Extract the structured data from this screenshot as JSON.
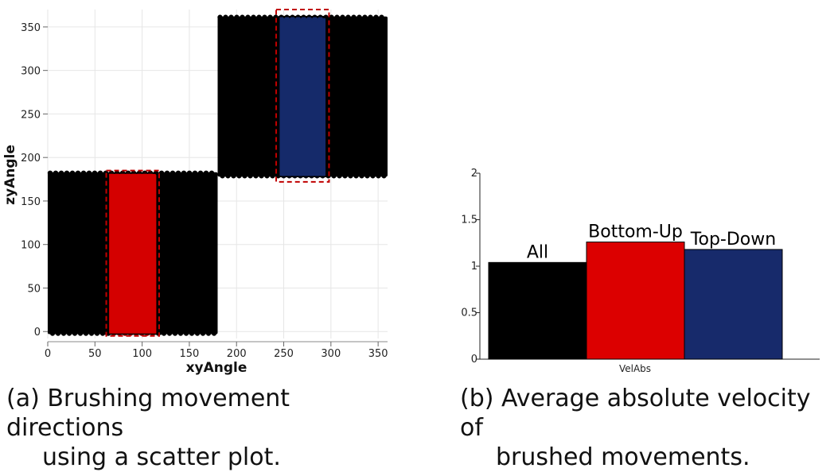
{
  "chart_data": [
    {
      "type": "scatter",
      "xlabel": "xyAngle",
      "ylabel": "zyAngle",
      "xlim": [
        0,
        360
      ],
      "ylim": [
        -8,
        370
      ],
      "xticks": [
        0,
        50,
        100,
        150,
        200,
        250,
        300,
        350
      ],
      "yticks": [
        0,
        50,
        100,
        150,
        200,
        250,
        300,
        350
      ],
      "grid": true,
      "regions": [
        {
          "name": "",
          "color": "#000000",
          "x": [
            0,
            180
          ],
          "y": [
            -3,
            183
          ]
        },
        {
          "name": "",
          "color": "#000000",
          "x": [
            180,
            360
          ],
          "y": [
            178,
            362
          ]
        },
        {
          "name": "",
          "color": "#d40000",
          "x": [
            65,
            115
          ],
          "y": [
            -3,
            181
          ]
        },
        {
          "name": "",
          "color": "#152a6a",
          "x": [
            245,
            295
          ],
          "y": [
            179,
            360
          ]
        }
      ],
      "brushes": [
        {
          "x": [
            60,
            120
          ],
          "y": [
            -3,
            182
          ],
          "style": "solid",
          "color": "#000000"
        },
        {
          "x": [
            62,
            118
          ],
          "y": [
            -5,
            185
          ],
          "style": "dashed",
          "color": "#c00000"
        },
        {
          "x": [
            245,
            295
          ],
          "y": [
            178,
            362
          ],
          "style": "solid",
          "color": "#000000"
        },
        {
          "x": [
            242,
            298
          ],
          "y": [
            172,
            370
          ],
          "style": "dashed",
          "color": "#c00000"
        }
      ],
      "caption": "(a) Brushing movement directions using a scatter plot."
    },
    {
      "type": "bar",
      "xlabel": "VelAbs",
      "ylabel": "",
      "ylim": [
        0,
        2
      ],
      "yticks": [
        0,
        0.5,
        1,
        1.5,
        2
      ],
      "categories": [
        "All",
        "Bottom-Up",
        "Top-Down"
      ],
      "values": [
        1.04,
        1.26,
        1.18
      ],
      "colors": [
        "#000000",
        "#dc0000",
        "#172a6b"
      ],
      "caption": "(b) Average absolute velocity of brushed movements."
    }
  ],
  "captions": {
    "a_line1": "(a) Brushing movement directions",
    "a_line2": "using a scatter plot.",
    "b_line1": "(b) Average absolute velocity of",
    "b_line2": "brushed movements."
  }
}
